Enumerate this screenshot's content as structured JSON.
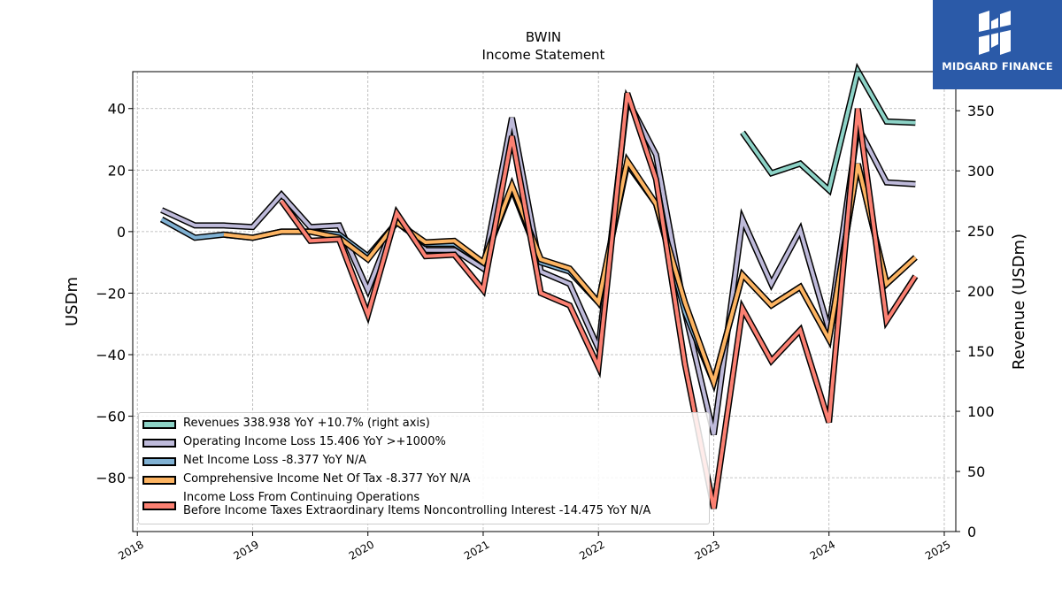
{
  "chart_data": {
    "type": "line",
    "title": "BWIN",
    "subtitle": "Income Statement",
    "ylabel": "USDm",
    "ylabel_right": "Revenue (USDm)",
    "ylim": [
      -97.5,
      52
    ],
    "ylim_right": [
      0,
      382.5
    ],
    "yticks": [
      -80,
      -60,
      -40,
      -20,
      0,
      20,
      40
    ],
    "yticks_right": [
      0,
      50,
      100,
      150,
      200,
      250,
      300,
      350
    ],
    "xlim": [
      2017.96,
      2025.1
    ],
    "xticks": [
      "2018",
      "2019",
      "2020",
      "2021",
      "2022",
      "2023",
      "2024",
      "2025"
    ],
    "grid": true,
    "legend_position": "lower-left",
    "series": [
      {
        "name": "Revenues",
        "legend_label": "Revenues  338.938 YoY +10.7% (right axis)",
        "color": "#8dd3c7",
        "axis": "right",
        "x": [
          2023.25,
          2023.5,
          2023.75,
          2024.0,
          2024.25,
          2024.5,
          2024.75
        ],
        "y": [
          332,
          298,
          306,
          284,
          383,
          341,
          340
        ]
      },
      {
        "name": "Operating Income Loss",
        "legend_label": "Operating Income Loss  15.406 YoY >+1000%",
        "color": "#bebada",
        "axis": "left",
        "x": [
          2018.21,
          2018.5,
          2018.75,
          2019.0,
          2019.25,
          2019.5,
          2019.75,
          2020.0,
          2020.25,
          2020.5,
          2020.75,
          2021.0,
          2021.25,
          2021.5,
          2021.75,
          2022.0,
          2022.25,
          2022.5,
          2022.75,
          2023.0,
          2023.25,
          2023.5,
          2023.75,
          2024.0,
          2024.25,
          2024.5,
          2024.75
        ],
        "y": [
          7,
          2,
          2,
          1.5,
          12,
          1.5,
          2,
          -19,
          5,
          -6,
          -6,
          -12,
          37,
          -13,
          -17,
          -38,
          43,
          25,
          -26,
          -66,
          4,
          -17,
          0.5,
          -32,
          34,
          16,
          15.4
        ]
      },
      {
        "name": "Net Income Loss",
        "legend_label": "Net Income Loss  -8.377 YoY N/A",
        "color": "#80b1d3",
        "axis": "left",
        "x": [
          2018.21,
          2018.5,
          2018.75,
          2019.0,
          2019.25,
          2019.5,
          2019.75,
          2020.0,
          2020.25,
          2020.5,
          2020.75,
          2021.0,
          2021.25,
          2021.5,
          2021.75,
          2022.0,
          2022.25,
          2022.5,
          2022.75,
          2023.0,
          2023.25,
          2023.5,
          2023.75,
          2024.0,
          2024.25,
          2024.5,
          2024.75
        ],
        "y": [
          4,
          -2,
          -1,
          -2,
          0,
          0,
          -1,
          -8,
          3,
          -4,
          -4,
          -10,
          14,
          -10,
          -13,
          -23,
          22,
          9,
          -26,
          -49,
          -14,
          -24,
          -18,
          -35,
          22,
          -17,
          -8.4
        ]
      },
      {
        "name": "Comprehensive Income Net Of Tax",
        "legend_label": "Comprehensive Income Net Of Tax  -8.377 YoY N/A",
        "color": "#fdb462",
        "axis": "left",
        "x": [
          2018.75,
          2019.0,
          2019.25,
          2019.5,
          2019.75,
          2020.0,
          2020.25,
          2020.5,
          2020.75,
          2021.0,
          2021.25,
          2021.5,
          2021.75,
          2022.0,
          2022.25,
          2022.5,
          2022.75,
          2023.0,
          2023.25,
          2023.5,
          2023.75,
          2024.0,
          2024.25,
          2024.5,
          2024.75
        ],
        "y": [
          -1,
          -2,
          0,
          0,
          -2,
          -9,
          3,
          -3.5,
          -3,
          -10,
          15,
          -9,
          -12,
          -23,
          23,
          9,
          -23,
          -49,
          -14,
          -24,
          -18,
          -35,
          22,
          -17,
          -8.4
        ]
      },
      {
        "name": "Income Loss From Continuing Operations Before Income Taxes Extraordinary Items Noncontrolling Interest",
        "legend_label_line1": "Income Loss From Continuing Operations",
        "legend_label_line2": "Before Income Taxes Extraordinary Items Noncontrolling Interest  -14.475 YoY N/A",
        "color": "#fb8072",
        "axis": "left",
        "x": [
          2019.25,
          2019.5,
          2019.75,
          2020.0,
          2020.25,
          2020.5,
          2020.75,
          2021.0,
          2021.25,
          2021.5,
          2021.75,
          2022.0,
          2022.25,
          2022.5,
          2022.75,
          2023.0,
          2023.25,
          2023.5,
          2023.75,
          2024.0,
          2024.25,
          2024.5,
          2024.75
        ],
        "y": [
          10,
          -3,
          -2.5,
          -27,
          6,
          -8,
          -7.5,
          -19,
          31,
          -20,
          -24,
          -44,
          45,
          17,
          -43,
          -90,
          -25,
          -42,
          -32,
          -62,
          40,
          -29,
          -14.5
        ]
      }
    ]
  },
  "logo": {
    "text": "MIDGARD FINANCE",
    "bg_color": "#2b5aa8"
  }
}
